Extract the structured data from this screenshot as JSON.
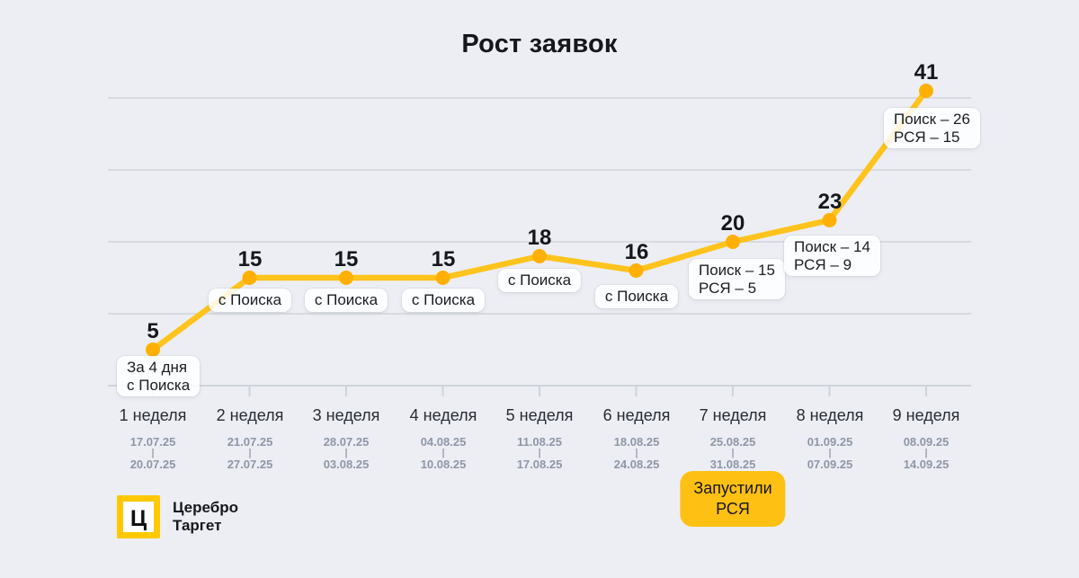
{
  "title": "Рост заявок",
  "colors": {
    "background": "#ECEEF4",
    "line": "#FFC31D",
    "dot": "#FFB000",
    "grid": "#D7DAE0",
    "axis": "#CFD3DA",
    "event_box": "#FFC014",
    "logo_yellow": "#FFC800",
    "text_dark": "#15171C",
    "text_dates": "#8E96A6"
  },
  "chart_data": {
    "type": "line",
    "title": "Рост заявок",
    "x_labels": [
      "1 неделя",
      "2 неделя",
      "3 неделя",
      "4 неделя",
      "5 неделя",
      "6 неделя",
      "7 неделя",
      "8 неделя",
      "9 неделя"
    ],
    "values": [
      5,
      15,
      15,
      15,
      18,
      16,
      20,
      23,
      41
    ],
    "ylim": [
      0,
      45
    ],
    "grid_values": [
      10,
      20,
      30,
      40
    ],
    "grid": true,
    "legend": "none",
    "annotations": [
      {
        "value": "5",
        "note1": "За 4 дня",
        "note2": "с Поиска"
      },
      {
        "value": "15",
        "note1": "с Поиска"
      },
      {
        "value": "15",
        "note1": "с Поиска"
      },
      {
        "value": "15",
        "note1": "с Поиска"
      },
      {
        "value": "18",
        "note1": "с Поиска"
      },
      {
        "value": "16",
        "note1": "с Поиска"
      },
      {
        "value": "20",
        "note1": "Поиск – 15",
        "note2": "РСЯ – 5"
      },
      {
        "value": "23",
        "note1": "Поиск – 14",
        "note2": "РСЯ – 9"
      },
      {
        "value": "41",
        "note1": "Поиск – 26",
        "note2": "РСЯ – 15"
      }
    ]
  },
  "axis": {
    "date_separator": "|",
    "weeks": [
      {
        "label": "1 неделя",
        "date_start": "17.07.25",
        "date_end": "20.07.25"
      },
      {
        "label": "2 неделя",
        "date_start": "21.07.25",
        "date_end": "27.07.25"
      },
      {
        "label": "3 неделя",
        "date_start": "28.07.25",
        "date_end": "03.08.25"
      },
      {
        "label": "4 неделя",
        "date_start": "04.08.25",
        "date_end": "10.08.25"
      },
      {
        "label": "5 неделя",
        "date_start": "11.08.25",
        "date_end": "17.08.25"
      },
      {
        "label": "6 неделя",
        "date_start": "18.08.25",
        "date_end": "24.08.25"
      },
      {
        "label": "7 неделя",
        "date_start": "25.08.25",
        "date_end": "31.08.25"
      },
      {
        "label": "8 неделя",
        "date_start": "01.09.25",
        "date_end": "07.09.25"
      },
      {
        "label": "9 неделя",
        "date_start": "08.09.25",
        "date_end": "14.09.25"
      }
    ]
  },
  "event": {
    "line1": "Запустили",
    "line2": "РСЯ"
  },
  "logo": {
    "letter": "Ц",
    "name_line1": "Церебро",
    "name_line2": "Таргет"
  }
}
